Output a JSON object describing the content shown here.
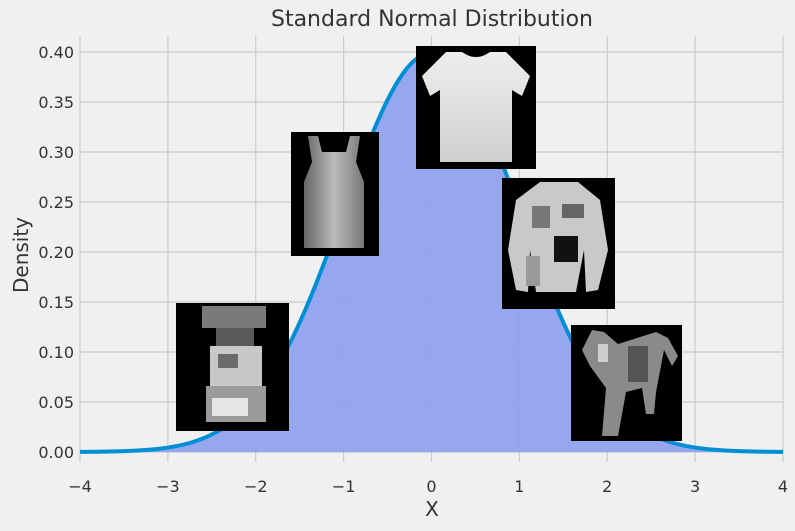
{
  "chart_data": {
    "type": "area",
    "title": "Standard Normal Distribution",
    "xlabel": "X",
    "ylabel": "Density",
    "xlim": [
      -4,
      4
    ],
    "ylim": [
      0,
      0.4
    ],
    "x_ticks": [
      "−4",
      "−3",
      "−2",
      "−1",
      "0",
      "1",
      "2",
      "3",
      "4"
    ],
    "y_ticks": [
      "0.00",
      "0.05",
      "0.10",
      "0.15",
      "0.20",
      "0.25",
      "0.30",
      "0.35",
      "0.40"
    ],
    "grid": true,
    "series": [
      {
        "curve": "standard normal pdf",
        "mean": 0,
        "std": 1,
        "fill": true
      }
    ],
    "colors": {
      "background": "#f0f0f0",
      "grid": "#cbcbcb",
      "line": "#008fd5",
      "fill": "#8c9ff0"
    },
    "images": [
      {
        "name": "sandal-thumbnail",
        "kind": "sandal"
      },
      {
        "name": "top-thumbnail",
        "kind": "top"
      },
      {
        "name": "tshirt-thumbnail",
        "kind": "tshirt"
      },
      {
        "name": "shirt-thumbnail",
        "kind": "shirt"
      },
      {
        "name": "coat-thumbnail",
        "kind": "coat"
      }
    ]
  }
}
